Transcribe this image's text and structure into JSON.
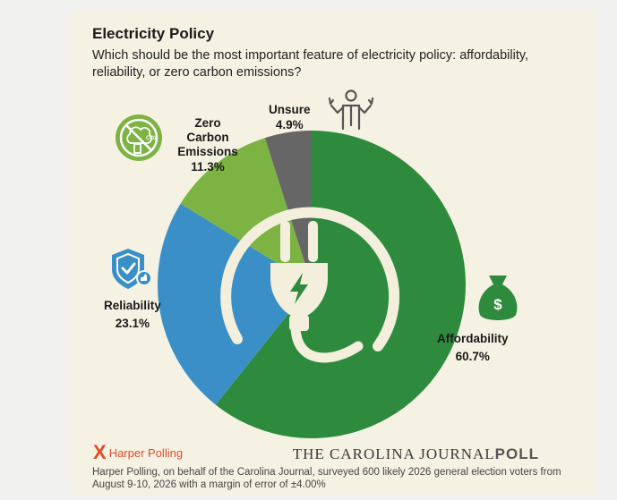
{
  "header": {
    "title": "Electricity Policy",
    "question": "Which should be the most important feature of electricity policy: affordability, reliability, or zero carbon emissions?"
  },
  "chart_data": {
    "type": "pie",
    "title": "Electricity Policy",
    "slices": [
      {
        "label": "Affordability",
        "value": 60.7,
        "value_label": "60.7%",
        "color": "#2e8b3d",
        "icon": "money-bag-icon"
      },
      {
        "label": "Reliability",
        "value": 23.1,
        "value_label": "23.1%",
        "color": "#3a8fc6",
        "icon": "shield-check-icon"
      },
      {
        "label": "Zero Carbon Emissions",
        "value": 11.3,
        "value_label": "11.3%",
        "color": "#7cb342",
        "icon": "no-co2-icon"
      },
      {
        "label": "Unsure",
        "value": 4.9,
        "value_label": "4.9%",
        "color": "#666666",
        "icon": "shrugging-person-icon"
      }
    ]
  },
  "footer": {
    "pollster_mark": "X",
    "pollster": "Harper Polling",
    "brand_prefix": "THE CAROLINA JOURNAL",
    "brand_suffix": "POLL",
    "note": "Harper Polling, on behalf of the Carolina Journal, surveyed 600 likely 2026 general election voters from August 9-10, 2026 with a margin of error of ±4.00%"
  }
}
